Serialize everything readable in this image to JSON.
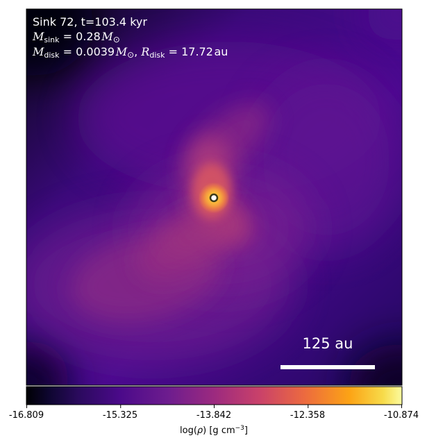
{
  "annotation": {
    "title": "Sink 72, t=103.4 kyr",
    "msink_symbol": "M",
    "msink_sub": "sink",
    "msink_value": "= 0.28",
    "mdisk_symbol": "M",
    "mdisk_sub": "disk",
    "mdisk_value": "= 0.0039",
    "rdisk_symbol": "R",
    "rdisk_sub": "disk",
    "rdisk_value": "= 17.72",
    "rdisk_unit": "au",
    "solar_symbol": "⊙"
  },
  "scale_bar": {
    "label": "125 au"
  },
  "colorbar": {
    "colormap": "plasma",
    "min": -16.809,
    "max": -10.874,
    "tick_labels": [
      "-16.809",
      "-15.325",
      "-13.842",
      "-12.358",
      "-10.874"
    ],
    "label_prefix": "log(",
    "label_symbol": "ρ",
    "label_suffix": ") [g cm",
    "label_exp": "−3",
    "label_end": "]"
  },
  "colors": {
    "sink_marker_fill": "#ffffff",
    "sink_marker_edge": "#3d3a1a",
    "annotation_text": "#ffffff"
  }
}
